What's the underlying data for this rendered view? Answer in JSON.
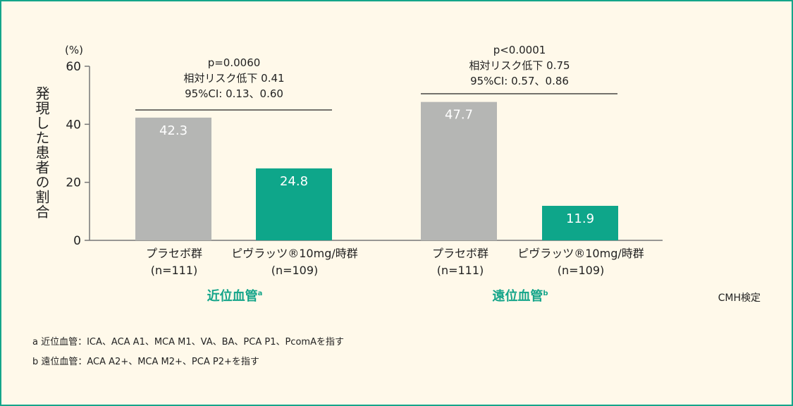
{
  "chart_data": {
    "type": "bar",
    "ylabel": "発現した患者の割合",
    "y_unit": "(%)",
    "ylim": [
      0,
      60
    ],
    "yticks": [
      "0",
      "20",
      "40",
      "60"
    ],
    "groups": [
      {
        "label": "近位血管",
        "sup": "a",
        "stats": [
          "p=0.0060",
          "相対リスク低下 0.41",
          "95%CI: 0.13、0.60"
        ],
        "categories": [
          [
            "プラセボ群",
            "(n=111)"
          ],
          [
            "ピヴラッツ®10mg/時群",
            "(n=109)"
          ]
        ],
        "values": [
          42.3,
          24.8
        ],
        "value_labels": [
          "42.3",
          "24.8"
        ]
      },
      {
        "label": "遠位血管",
        "sup": "b",
        "stats": [
          "p<0.0001",
          "相対リスク低下 0.75",
          "95%CI: 0.57、0.86"
        ],
        "categories": [
          [
            "プラセボ群",
            "(n=111)"
          ],
          [
            "ピヴラッツ®10mg/時群",
            "(n=109)"
          ]
        ],
        "values": [
          47.7,
          11.9
        ],
        "value_labels": [
          "47.7",
          "11.9"
        ]
      }
    ],
    "series_colors": [
      "#b5b6b4",
      "#0ea68a"
    ]
  },
  "test_note": "CMH検定",
  "footnotes": [
    "a 近位血管：ICA、ACA A1、MCA M1、VA、BA、PCA P1、PcomAを指す",
    "b 遠位血管：ACA A2+、MCA M2+、PCA P2+を指す"
  ]
}
